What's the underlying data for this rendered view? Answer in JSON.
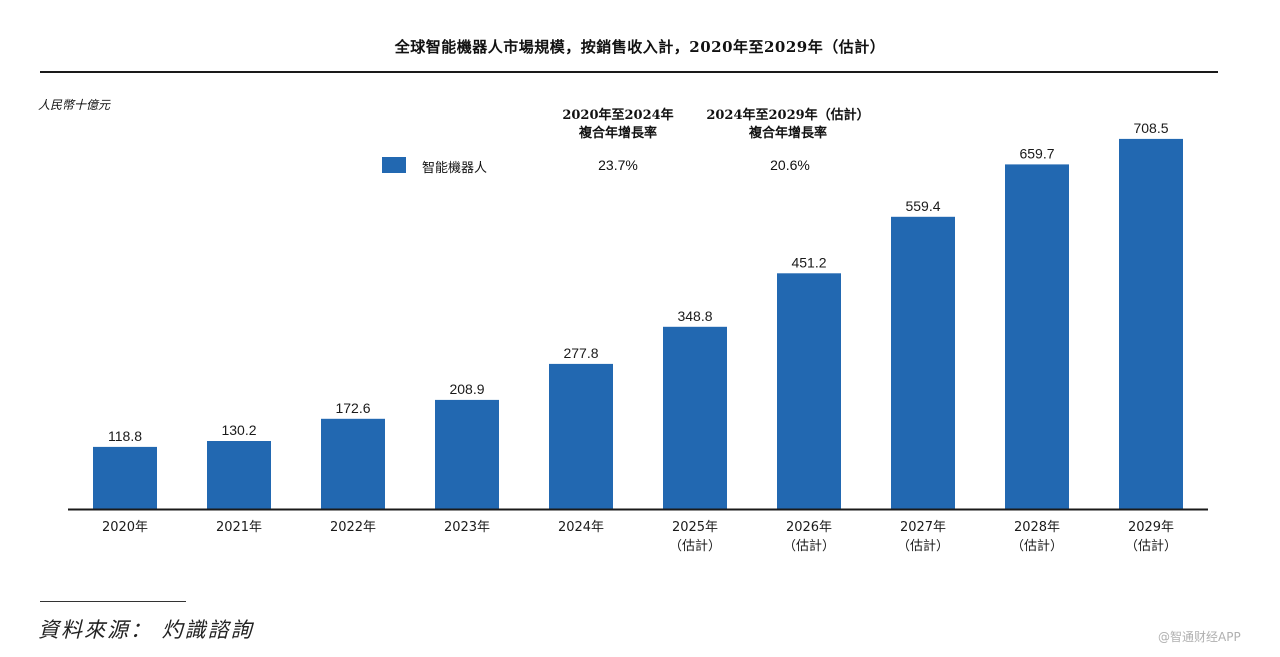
{
  "chart_data": {
    "type": "bar",
    "title": "全球智能機器人市場規模，按銷售收入計，2020年至2029年（估計）",
    "ylabel": "人民幣十億元",
    "xlabel": "",
    "ylim": [
      0,
      760
    ],
    "grid": false,
    "legend_position": "top",
    "categories": [
      [
        "2020年"
      ],
      [
        "2021年"
      ],
      [
        "2022年"
      ],
      [
        "2023年"
      ],
      [
        "2024年"
      ],
      [
        "2025年",
        "（估計）"
      ],
      [
        "2026年",
        "（估計）"
      ],
      [
        "2027年",
        "（估計）"
      ],
      [
        "2028年",
        "（估計）"
      ],
      [
        "2029年",
        "（估計）"
      ]
    ],
    "series": [
      {
        "name": "智能機器人",
        "color": "#2268b1",
        "values": [
          118.8,
          130.2,
          172.6,
          208.9,
          277.8,
          348.8,
          451.2,
          559.4,
          659.7,
          708.5
        ]
      }
    ],
    "cagr": {
      "period1_header": [
        "2020年至2024年",
        "複合年增長率"
      ],
      "period2_header": [
        "2024年至2029年（估計）",
        "複合年增長率"
      ],
      "period1_value": "23.7%",
      "period2_value": "20.6%"
    },
    "value_labels": [
      "118.8",
      "130.2",
      "172.6",
      "208.9",
      "277.8",
      "348.8",
      "451.2",
      "559.4",
      "659.7",
      "708.5"
    ]
  },
  "source": "資料來源： 灼識諮詢",
  "watermark": "@智通财经APP"
}
